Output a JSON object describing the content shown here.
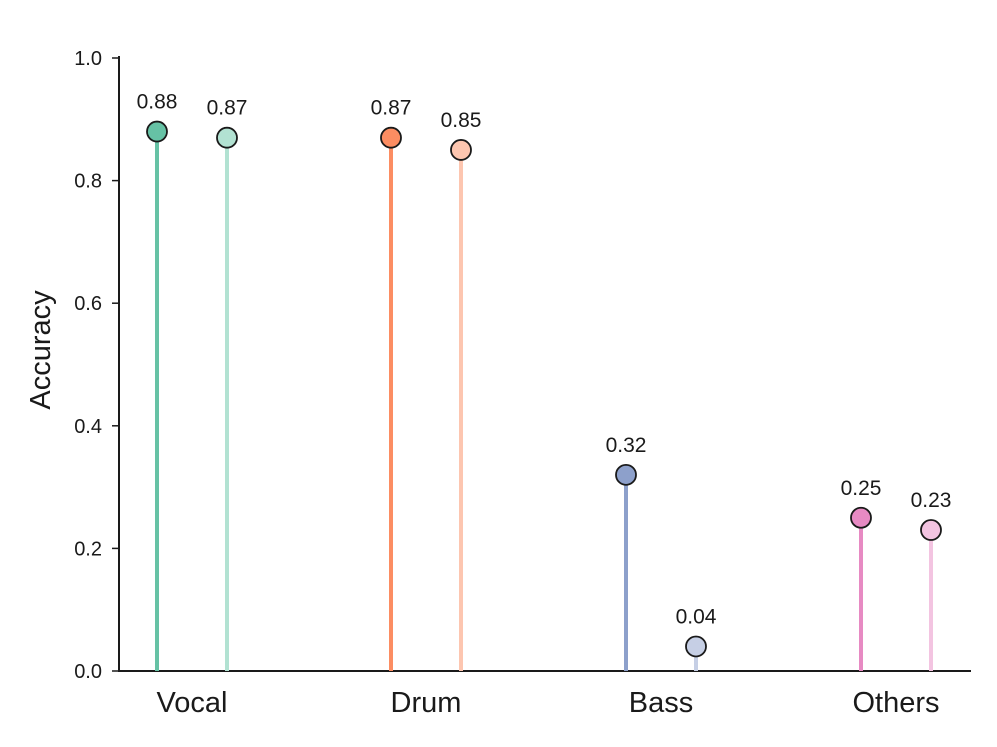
{
  "chart_data": {
    "type": "lollipop",
    "categories": [
      "Vocal",
      "Drum",
      "Bass",
      "Others"
    ],
    "series": [
      {
        "values": [
          0.88,
          0.87,
          0.32,
          0.25
        ],
        "labels": [
          "0.88",
          "0.87",
          "0.32",
          "0.25"
        ]
      },
      {
        "values": [
          0.87,
          0.85,
          0.04,
          0.23
        ],
        "labels": [
          "0.87",
          "0.85",
          "0.04",
          "0.23"
        ]
      }
    ],
    "colors": {
      "Vocal": [
        "#66c2a5",
        "#b2e2d2"
      ],
      "Drum": [
        "#fc8d62",
        "#fdc6b0"
      ],
      "Bass": [
        "#8da0cb",
        "#c6cfe5"
      ],
      "Others": [
        "#e78ac3",
        "#f3c4e1"
      ]
    },
    "ylabel": "Accuracy",
    "xlabel": "",
    "ylim": [
      0.0,
      1.0
    ],
    "yticks": [
      "0.0",
      "0.2",
      "0.4",
      "0.6",
      "0.8",
      "1.0"
    ],
    "grid": false
  }
}
